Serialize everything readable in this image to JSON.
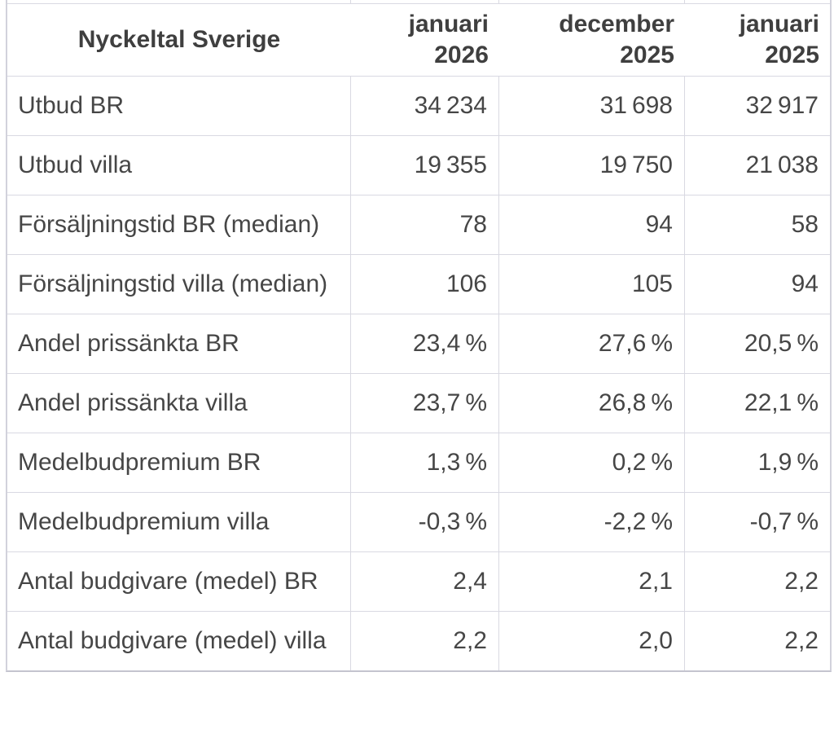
{
  "colors": {
    "text": "#464646",
    "border_inner": "#d9d9e2",
    "border_outer": "#d2d2dc",
    "border_bottom": "#c4c4cf",
    "background": "#ffffff"
  },
  "table": {
    "title": "Nyckeltal Sverige",
    "column_headers": [
      {
        "month": "januari",
        "year": "2026"
      },
      {
        "month": "december",
        "year": "2025"
      },
      {
        "month": "januari",
        "year": "2025"
      }
    ],
    "rows": [
      {
        "label": "Utbud BR",
        "values": [
          "34 234",
          "31 698",
          "32 917"
        ]
      },
      {
        "label": "Utbud villa",
        "values": [
          "19 355",
          "19 750",
          "21 038"
        ]
      },
      {
        "label": "Försäljningstid BR (median)",
        "values": [
          "78",
          "94",
          "58"
        ]
      },
      {
        "label": "Försäljningstid villa (median)",
        "values": [
          "106",
          "105",
          "94"
        ]
      },
      {
        "label": "Andel prissänkta BR",
        "values": [
          "23,4 %",
          "27,6 %",
          "20,5 %"
        ]
      },
      {
        "label": "Andel prissänkta villa",
        "values": [
          "23,7 %",
          "26,8 %",
          "22,1 %"
        ]
      },
      {
        "label": "Medelbudpremium BR",
        "values": [
          "1,3 %",
          "0,2 %",
          "1,9 %"
        ]
      },
      {
        "label": "Medelbudpremium villa",
        "values": [
          "-0,3 %",
          "-2,2 %",
          "-0,7 %"
        ]
      },
      {
        "label": "Antal budgivare (medel) BR",
        "values": [
          "2,4",
          "2,1",
          "2,2"
        ]
      },
      {
        "label": "Antal budgivare (medel) villa",
        "values": [
          "2,2",
          "2,0",
          "2,2"
        ]
      }
    ]
  }
}
